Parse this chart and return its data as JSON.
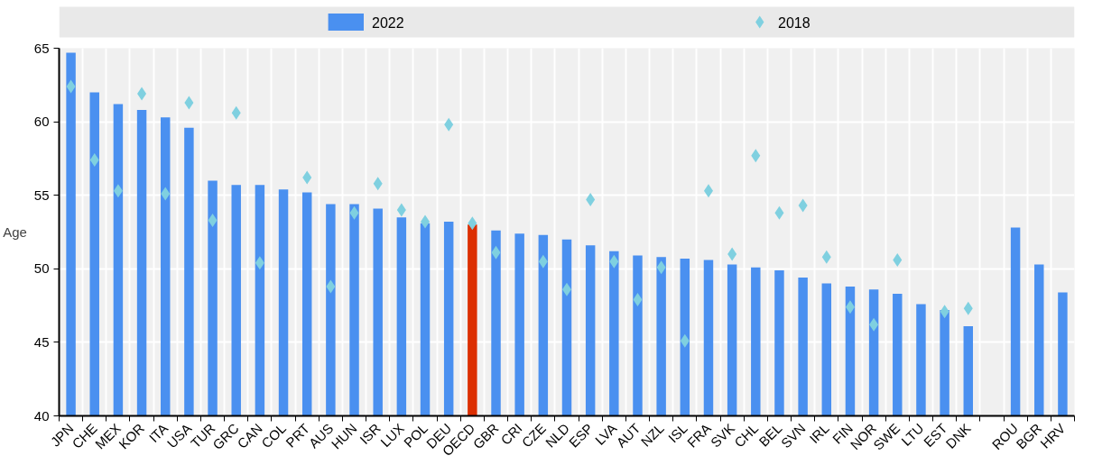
{
  "chart_data": {
    "type": "bar",
    "ylabel": "Age",
    "categories": [
      "JPN",
      "CHE",
      "MEX",
      "KOR",
      "ITA",
      "USA",
      "TUR",
      "GRC",
      "CAN",
      "COL",
      "PRT",
      "AUS",
      "HUN",
      "ISR",
      "LUX",
      "POL",
      "DEU",
      "OECD",
      "GBR",
      "CRI",
      "CZE",
      "NLD",
      "ESP",
      "LVA",
      "AUT",
      "NZL",
      "ISL",
      "FRA",
      "SVK",
      "CHL",
      "BEL",
      "SVN",
      "IRL",
      "FIN",
      "NOR",
      "SWE",
      "LTU",
      "EST",
      "DNK",
      null,
      "ROU",
      "BGR",
      "HRV"
    ],
    "series": [
      {
        "name": "2022",
        "color": "#4a90f0",
        "colors": [
          "#4a90f0",
          "#4a90f0",
          "#4a90f0",
          "#4a90f0",
          "#4a90f0",
          "#4a90f0",
          "#4a90f0",
          "#4a90f0",
          "#4a90f0",
          "#4a90f0",
          "#4a90f0",
          "#4a90f0",
          "#4a90f0",
          "#4a90f0",
          "#4a90f0",
          "#4a90f0",
          "#4a90f0",
          "#dc2f02",
          "#4a90f0",
          "#4a90f0",
          "#4a90f0",
          "#4a90f0",
          "#4a90f0",
          "#4a90f0",
          "#4a90f0",
          "#4a90f0",
          "#4a90f0",
          "#4a90f0",
          "#4a90f0",
          "#4a90f0",
          "#4a90f0",
          "#4a90f0",
          "#4a90f0",
          "#4a90f0",
          "#4a90f0",
          "#4a90f0",
          "#4a90f0",
          "#4a90f0",
          "#4a90f0",
          "#4a90f0",
          "#4a90f0",
          "#4a90f0",
          "#4a90f0"
        ],
        "values": [
          64.7,
          62.0,
          61.2,
          60.8,
          60.3,
          59.6,
          56.0,
          55.7,
          55.7,
          55.4,
          55.2,
          54.4,
          54.4,
          54.1,
          53.5,
          53.1,
          53.2,
          53.0,
          52.6,
          52.4,
          52.3,
          52.0,
          51.6,
          51.2,
          50.9,
          50.8,
          50.7,
          50.6,
          50.3,
          50.1,
          49.9,
          49.4,
          49.0,
          48.8,
          48.6,
          48.3,
          47.6,
          47.2,
          46.1,
          null,
          52.8,
          50.3,
          48.4
        ]
      },
      {
        "name": "2018",
        "type": "scatter",
        "marker": "diamond",
        "color": "#7fd0e0",
        "values": [
          62.4,
          57.4,
          55.3,
          61.9,
          55.1,
          61.3,
          53.3,
          60.6,
          50.4,
          null,
          56.2,
          48.8,
          53.8,
          55.8,
          54.0,
          53.2,
          59.8,
          53.1,
          51.1,
          null,
          50.5,
          48.6,
          54.7,
          50.5,
          47.9,
          50.1,
          45.1,
          55.3,
          51.0,
          57.7,
          53.8,
          54.3,
          50.8,
          47.4,
          46.2,
          50.6,
          null,
          47.1,
          47.3,
          null,
          null,
          null,
          null
        ]
      }
    ],
    "ylim": [
      40,
      65
    ],
    "yticks": [
      40,
      45,
      50,
      55,
      60,
      65
    ],
    "grid": true,
    "legend": "top"
  }
}
